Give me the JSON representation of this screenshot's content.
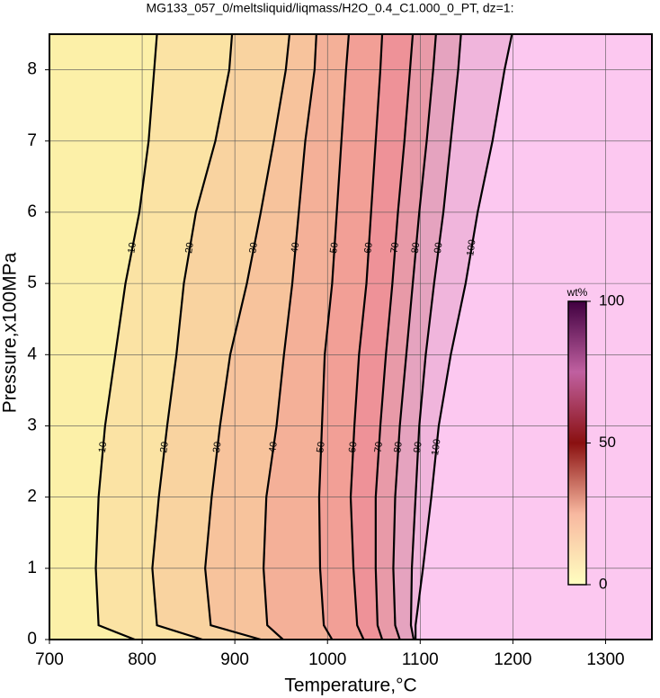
{
  "chart_data": {
    "type": "contour",
    "title": "MG133_057_0/meltsliquid/liqmass/H2O_0.4_C1.000_0_PT, dz=1:",
    "x_label": "Temperature,°C",
    "y_label": "Pressure,x100MPa",
    "xlim": [
      700,
      1350
    ],
    "ylim": [
      0,
      8.5
    ],
    "xticks": [
      700,
      800,
      900,
      1000,
      1100,
      1200,
      1300
    ],
    "yticks": [
      0,
      1,
      2,
      3,
      4,
      5,
      6,
      7,
      8
    ],
    "grid": true,
    "line_color": "#000000",
    "y": [
      0,
      0.2,
      1,
      2,
      3,
      4,
      5,
      6,
      7,
      8,
      8.5
    ],
    "series": [
      {
        "name": "10",
        "values": [
          792,
          753,
          750,
          753,
          760,
          771,
          782,
          797,
          807,
          813,
          816
        ]
      },
      {
        "name": "20",
        "values": [
          865,
          816,
          811,
          818,
          827,
          837,
          845,
          858,
          879,
          894,
          897
        ]
      },
      {
        "name": "30",
        "values": [
          928,
          874,
          868,
          875,
          884,
          895,
          913,
          928,
          942,
          955,
          959
        ]
      },
      {
        "name": "40",
        "values": [
          952,
          935,
          931,
          934,
          945,
          953,
          962,
          969,
          976,
          986,
          988
        ]
      },
      {
        "name": "50",
        "values": [
          1005,
          996,
          992,
          991,
          994,
          997,
          1005,
          1010,
          1015,
          1020,
          1023
        ]
      },
      {
        "name": "60",
        "values": [
          1039,
          1032,
          1028,
          1025,
          1029,
          1034,
          1042,
          1047,
          1052,
          1057,
          1059
        ]
      },
      {
        "name": "70",
        "values": [
          1059,
          1054,
          1052,
          1052,
          1057,
          1063,
          1070,
          1076,
          1083,
          1089,
          1092
        ]
      },
      {
        "name": "80",
        "values": [
          1078,
          1073,
          1071,
          1073,
          1078,
          1085,
          1092,
          1099,
          1107,
          1114,
          1117
        ]
      },
      {
        "name": "90",
        "values": [
          1093,
          1090,
          1091,
          1095,
          1099,
          1106,
          1115,
          1125,
          1133,
          1141,
          1144
        ]
      },
      {
        "name": "100",
        "values": [
          1095,
          1095,
          1103,
          1112,
          1120,
          1133,
          1149,
          1162,
          1178,
          1191,
          1199
        ]
      }
    ],
    "band_colors": [
      "#fcf0a8",
      "#fbe3a4",
      "#f9d3a0",
      "#f7c39c",
      "#f4b098",
      "#f29f96",
      "#ee9298",
      "#e89aa8",
      "#e5a3bf",
      "#f0b5dc",
      "#fcc8f0"
    ],
    "colorbar": {
      "label": "wt%",
      "lim": [
        0,
        100
      ],
      "ticks": [
        0,
        50,
        100
      ],
      "colors": [
        "#ffffc0",
        "#f8b8a0",
        "#8a1010",
        "#c060a0",
        "#400040"
      ]
    }
  }
}
